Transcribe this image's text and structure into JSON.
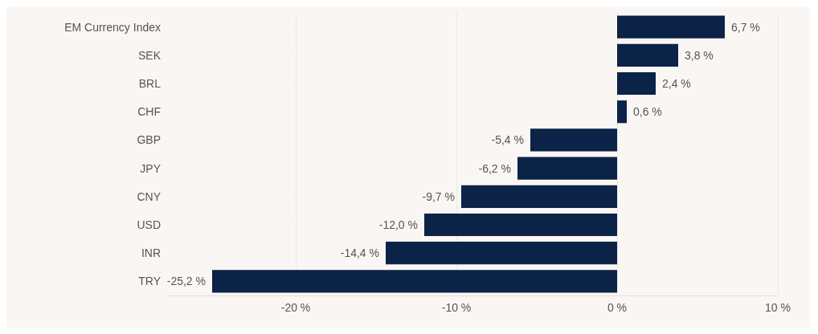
{
  "chart_data": {
    "type": "bar",
    "orientation": "horizontal",
    "categories": [
      "EM Currency Index",
      "SEK",
      "BRL",
      "CHF",
      "GBP",
      "JPY",
      "CNY",
      "USD",
      "INR",
      "TRY"
    ],
    "values": [
      6.7,
      3.8,
      2.4,
      0.6,
      -5.4,
      -6.2,
      -9.7,
      -12.0,
      -14.4,
      -25.2
    ],
    "value_labels": [
      "6,7 %",
      "3,8 %",
      "2,4 %",
      "0,6 %",
      "-5,4 %",
      "-6,2 %",
      "-9,7 %",
      "-12,0 %",
      "-14,4 %",
      "-25,2 %"
    ],
    "color": "#0b2346",
    "xlim": [
      -28,
      10
    ],
    "xticks": [
      {
        "value": -20,
        "label": "-20 %"
      },
      {
        "value": -10,
        "label": "-10 %"
      },
      {
        "value": 0,
        "label": "0 %"
      },
      {
        "value": 10,
        "label": "10 %"
      }
    ],
    "grid": "x"
  }
}
